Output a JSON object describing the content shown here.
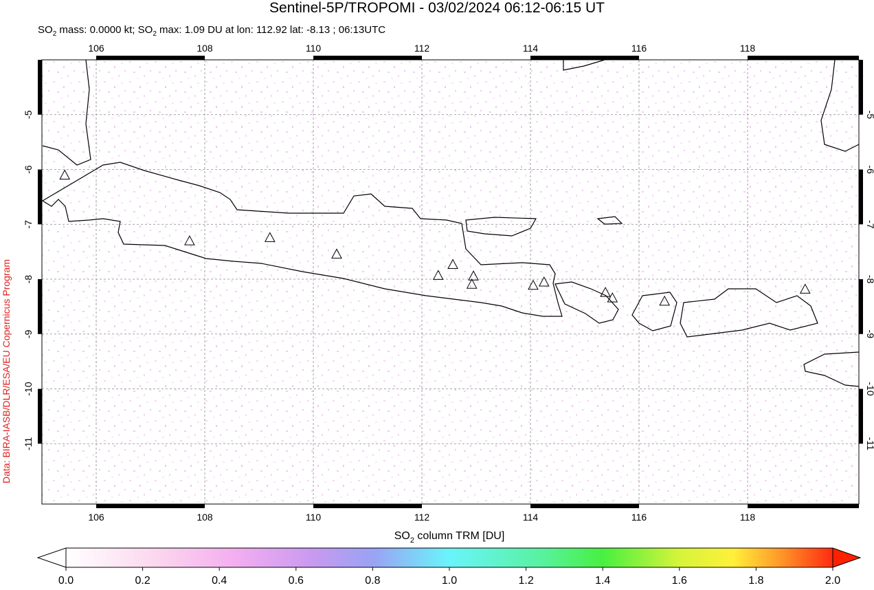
{
  "title": "Sentinel-5P/TROPOMI - 03/02/2024 06:12-06:15 UT",
  "subtitle": [
    "SO",
    "2",
    " mass: 0.0000 kt; SO",
    "2",
    " max: 1.09 DU at lon: 112.92 lat: -8.13 ; 06:13UTC"
  ],
  "credit": "Data: BIRA-IASB/DLR/ESA/EU Copernicus Program",
  "map": {
    "xlim": [
      105,
      120.05
    ],
    "ylim": [
      -12.1,
      -4
    ],
    "xticks": [
      106,
      108,
      110,
      112,
      114,
      116,
      118
    ],
    "yticks": [
      -5,
      -6,
      -7,
      -8,
      -9,
      -10,
      -11
    ],
    "volcanoes": [
      [
        107.72,
        -7.3
      ],
      [
        109.2,
        -7.24
      ],
      [
        110.43,
        -7.54
      ],
      [
        112.3,
        -7.93
      ],
      [
        112.57,
        -7.73
      ],
      [
        112.95,
        -7.94
      ],
      [
        112.92,
        -8.09
      ],
      [
        114.05,
        -8.11
      ],
      [
        114.25,
        -8.05
      ],
      [
        115.38,
        -8.24
      ],
      [
        115.51,
        -8.34
      ],
      [
        116.47,
        -8.4
      ],
      [
        119.06,
        -8.18
      ],
      [
        105.42,
        -6.1
      ]
    ]
  },
  "colorbar": {
    "label": [
      "SO",
      "2",
      " column TRM [DU]"
    ],
    "lim": [
      0,
      2
    ],
    "ticks": [
      {
        "value": 0,
        "label": "0.0"
      },
      0.2,
      0.4,
      0.6,
      0.8,
      {
        "value": 1,
        "label": "1.0"
      },
      1.2,
      1.4,
      1.6,
      1.8,
      {
        "value": 2,
        "label": "2.0"
      }
    ]
  }
}
